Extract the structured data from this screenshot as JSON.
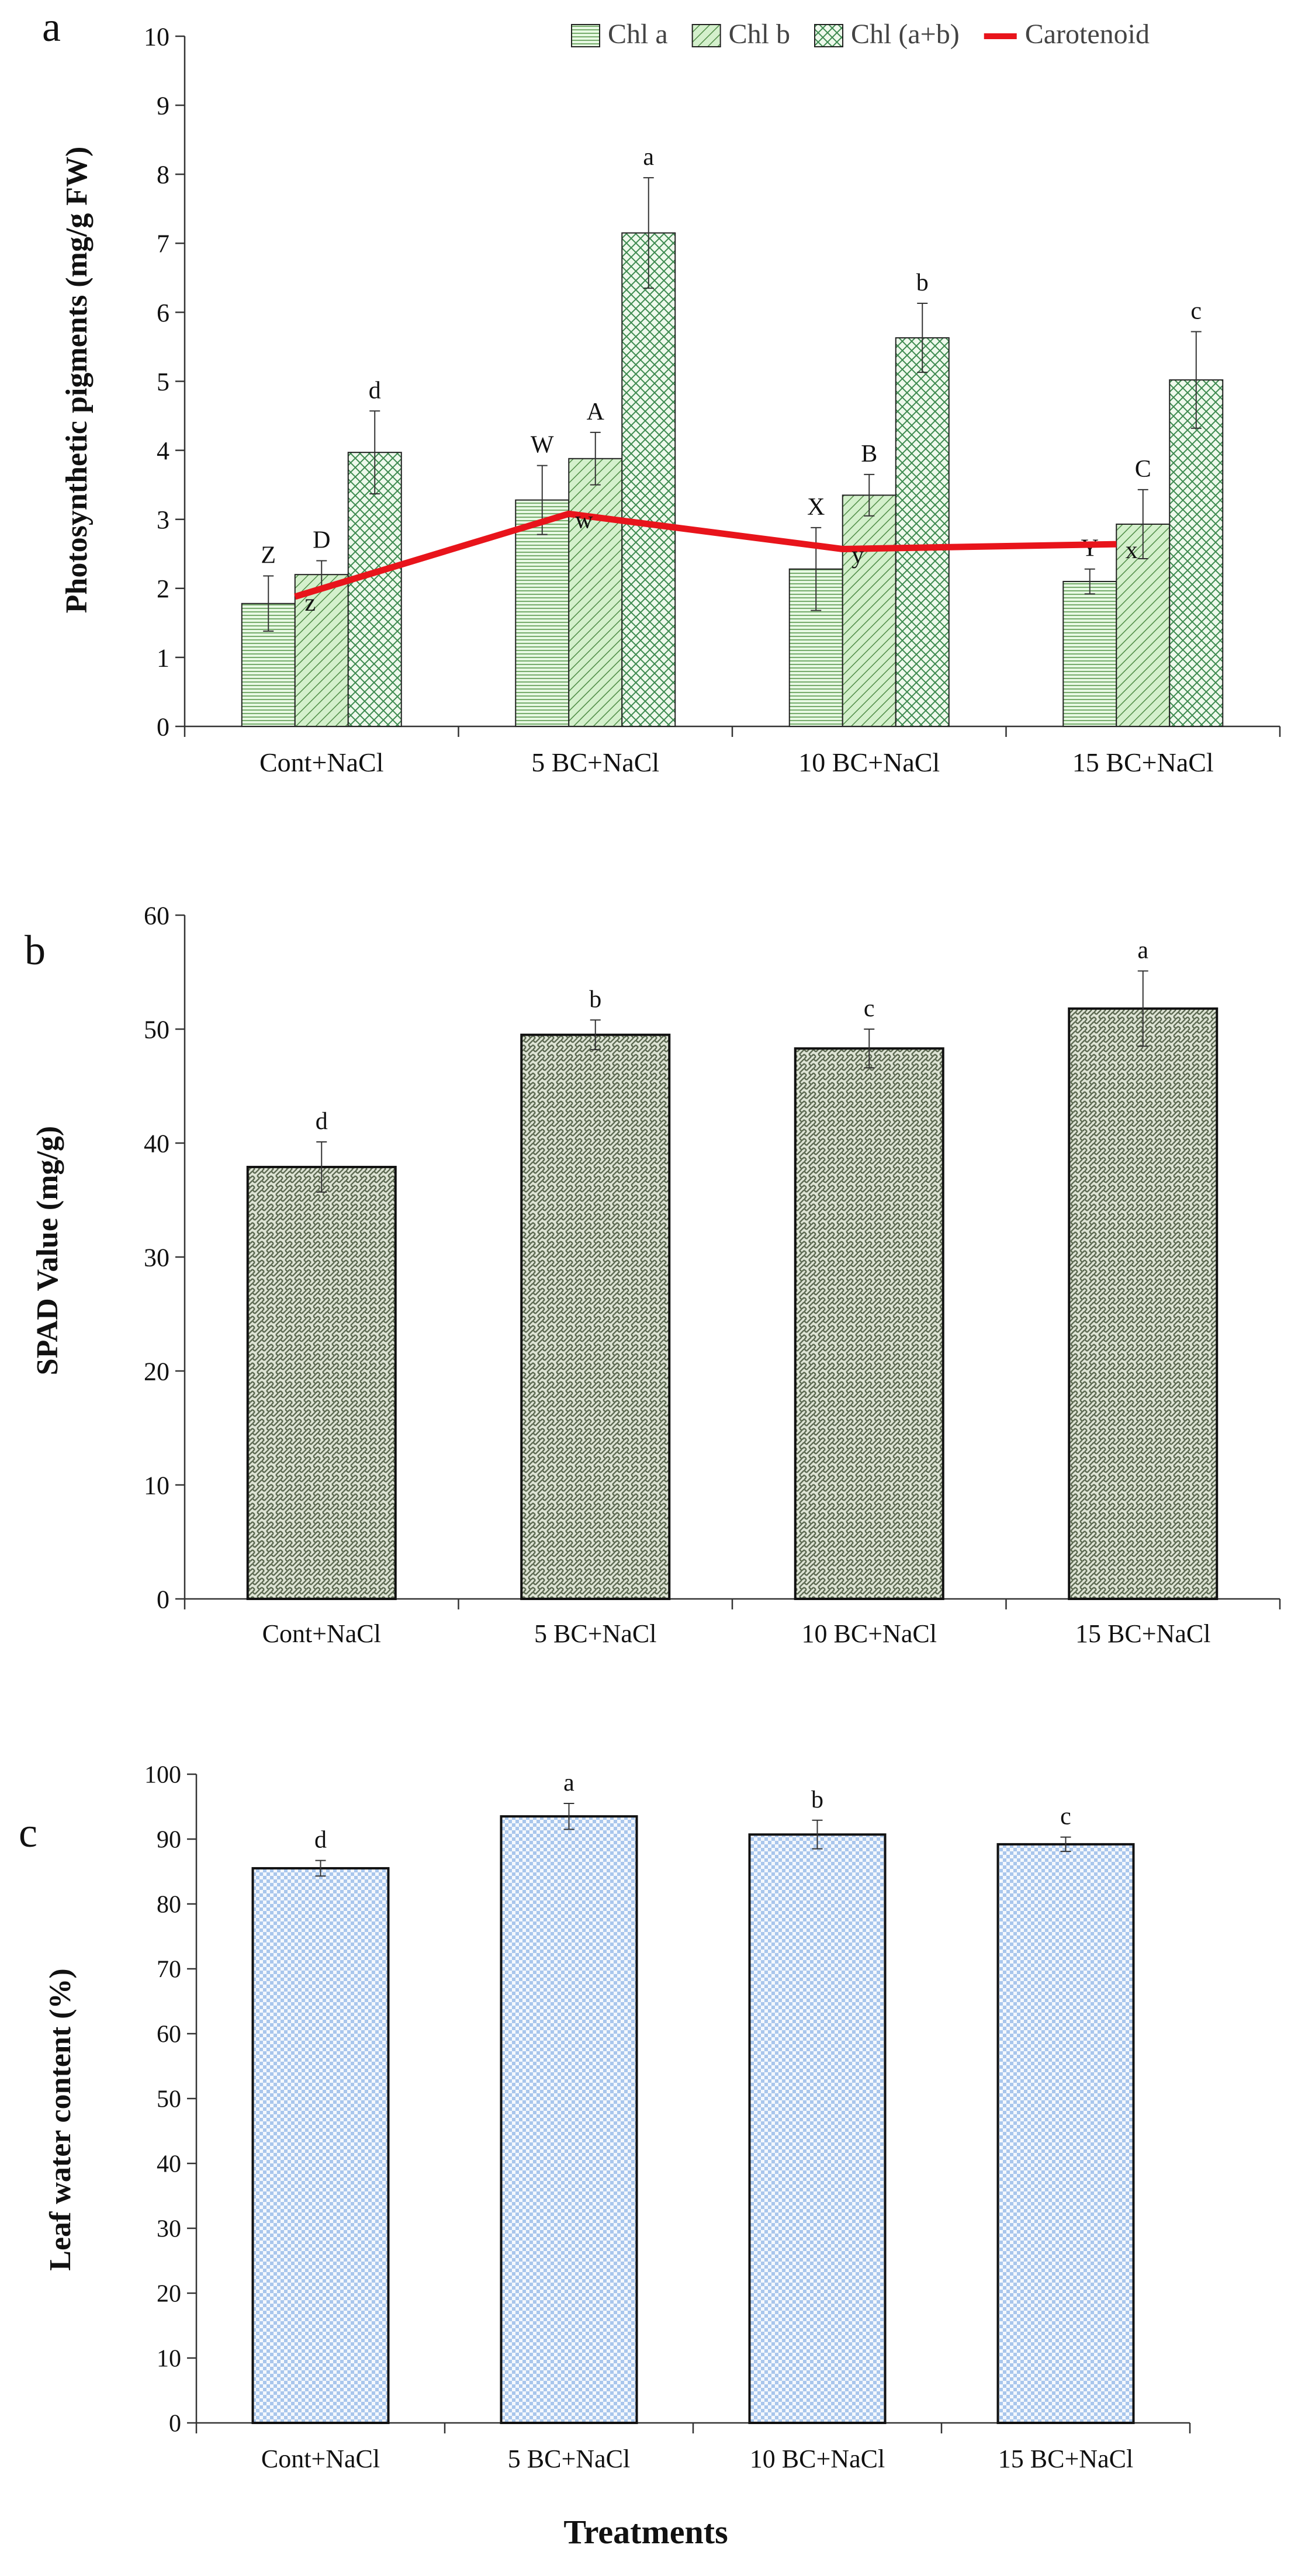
{
  "figure": {
    "x_title": "Treatments"
  },
  "chart_data": [
    {
      "panel_label": "a",
      "type": "bar",
      "categories": [
        "Cont+NaCl",
        "5 BC+NaCl",
        "10 BC+NaCl",
        "15 BC+NaCl"
      ],
      "ylabel": "Photosynthetic pigments (mg/g FW)",
      "xlabel": "",
      "ylim": [
        0,
        10
      ],
      "yticks": [
        0,
        1,
        2,
        3,
        4,
        5,
        6,
        7,
        8,
        9,
        10
      ],
      "legend_position": "top-right",
      "series": [
        {
          "name": "Chl a",
          "pattern": "hlines",
          "color": "#d9f5d3",
          "stroke": "#5f9a55",
          "values": [
            1.78,
            3.28,
            2.28,
            2.1
          ],
          "errors": [
            0.4,
            0.5,
            0.6,
            0.18
          ],
          "letters": [
            "Z",
            "W",
            "X",
            "Y"
          ]
        },
        {
          "name": "Chl b",
          "pattern": "diag",
          "color": "#c8ecc0",
          "stroke": "#4f8c46",
          "values": [
            2.2,
            3.88,
            3.35,
            2.93
          ],
          "errors": [
            0.2,
            0.38,
            0.3,
            0.5
          ],
          "letters": [
            "D",
            "A",
            "B",
            "C"
          ]
        },
        {
          "name": "Chl (a+b)",
          "pattern": "cross",
          "color": "#e6f7e2",
          "stroke": "#3d8a4f",
          "values": [
            3.97,
            7.15,
            5.63,
            5.02
          ],
          "errors": [
            0.6,
            0.8,
            0.5,
            0.7
          ],
          "letters": [
            "d",
            "a",
            "b",
            "c"
          ]
        }
      ],
      "line_series": {
        "name": "Carotenoid",
        "color": "#e8141b",
        "values": [
          1.88,
          3.08,
          2.57,
          2.64
        ],
        "letters": [
          "z",
          "w",
          "y",
          "x"
        ]
      }
    },
    {
      "panel_label": "b",
      "type": "bar",
      "categories": [
        "Cont+NaCl",
        "5 BC+NaCl",
        "10 BC+NaCl",
        "15 BC+NaCl"
      ],
      "ylabel": "SPAD Value (mg/g)",
      "xlabel": "",
      "ylim": [
        0,
        60
      ],
      "yticks": [
        0,
        10,
        20,
        30,
        40,
        50,
        60
      ],
      "series": [
        {
          "name": "SPAD",
          "pattern": "weave",
          "color": "#c2cbb5",
          "stroke": "#4f5a46",
          "values": [
            37.9,
            49.5,
            48.3,
            51.8
          ],
          "errors": [
            2.2,
            1.3,
            1.7,
            3.3
          ],
          "letters": [
            "d",
            "b",
            "c",
            "a"
          ]
        }
      ]
    },
    {
      "panel_label": "c",
      "type": "bar",
      "categories": [
        "Cont+NaCl",
        "5 BC+NaCl",
        "10 BC+NaCl",
        "15 BC+NaCl"
      ],
      "ylabel": "Leaf water content (%)",
      "xlabel": "Treatments",
      "ylim": [
        0,
        100
      ],
      "yticks": [
        0,
        10,
        20,
        30,
        40,
        50,
        60,
        70,
        80,
        90,
        100
      ],
      "series": [
        {
          "name": "Leaf water content",
          "pattern": "checker",
          "color": "#e4edf8",
          "stroke": "#9ab8e0",
          "values": [
            85.5,
            93.5,
            90.7,
            89.2
          ],
          "errors": [
            1.2,
            2.0,
            2.2,
            1.1
          ],
          "letters": [
            "d",
            "a",
            "b",
            "c"
          ]
        }
      ]
    }
  ]
}
